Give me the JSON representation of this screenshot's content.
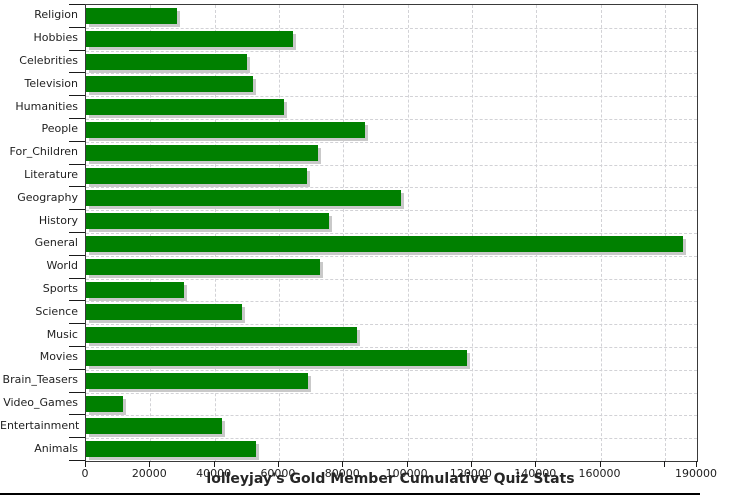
{
  "title": "lolleyjay's Gold Member Cumulative Quiz Stats",
  "colors": {
    "bar": "#008000",
    "bar_shadow": "#c9c9c9",
    "grid": "#d2d2d6",
    "axis": "#3a3a3a",
    "text": "#1f1f1f"
  },
  "chart_data": {
    "type": "bar",
    "orientation": "horizontal",
    "title": "lolleyjay's Gold Member Cumulative Quiz Stats",
    "xlabel": "",
    "ylabel": "",
    "xlim": [
      0,
      190000
    ],
    "grid": "dashed, both axes",
    "legend": "none",
    "categories": [
      "Religion",
      "Hobbies",
      "Celebrities",
      "Television",
      "Humanities",
      "People",
      "For_Children",
      "Literature",
      "Geography",
      "History",
      "General",
      "World",
      "Sports",
      "Science",
      "Music",
      "Movies",
      "Brain_Teasers",
      "Video_Games",
      "Entertainment",
      "Animals"
    ],
    "values": [
      28300,
      64400,
      50100,
      52000,
      61700,
      86700,
      72000,
      68800,
      98000,
      75700,
      185600,
      72900,
      30600,
      48400,
      84300,
      118400,
      69000,
      11500,
      42300,
      52900
    ],
    "x_ticks": [
      {
        "value": 0,
        "label": "0"
      },
      {
        "value": 20000,
        "label": "20000"
      },
      {
        "value": 40000,
        "label": "40000"
      },
      {
        "value": 60000,
        "label": "60000"
      },
      {
        "value": 80000,
        "label": "80000"
      },
      {
        "value": 100000,
        "label": "100000"
      },
      {
        "value": 120000,
        "label": "120000"
      },
      {
        "value": 140000,
        "label": "140000"
      },
      {
        "value": 160000,
        "label": "160000"
      },
      {
        "value": 180000,
        "label": ""
      },
      {
        "value": 190000,
        "label": "190000"
      }
    ]
  }
}
